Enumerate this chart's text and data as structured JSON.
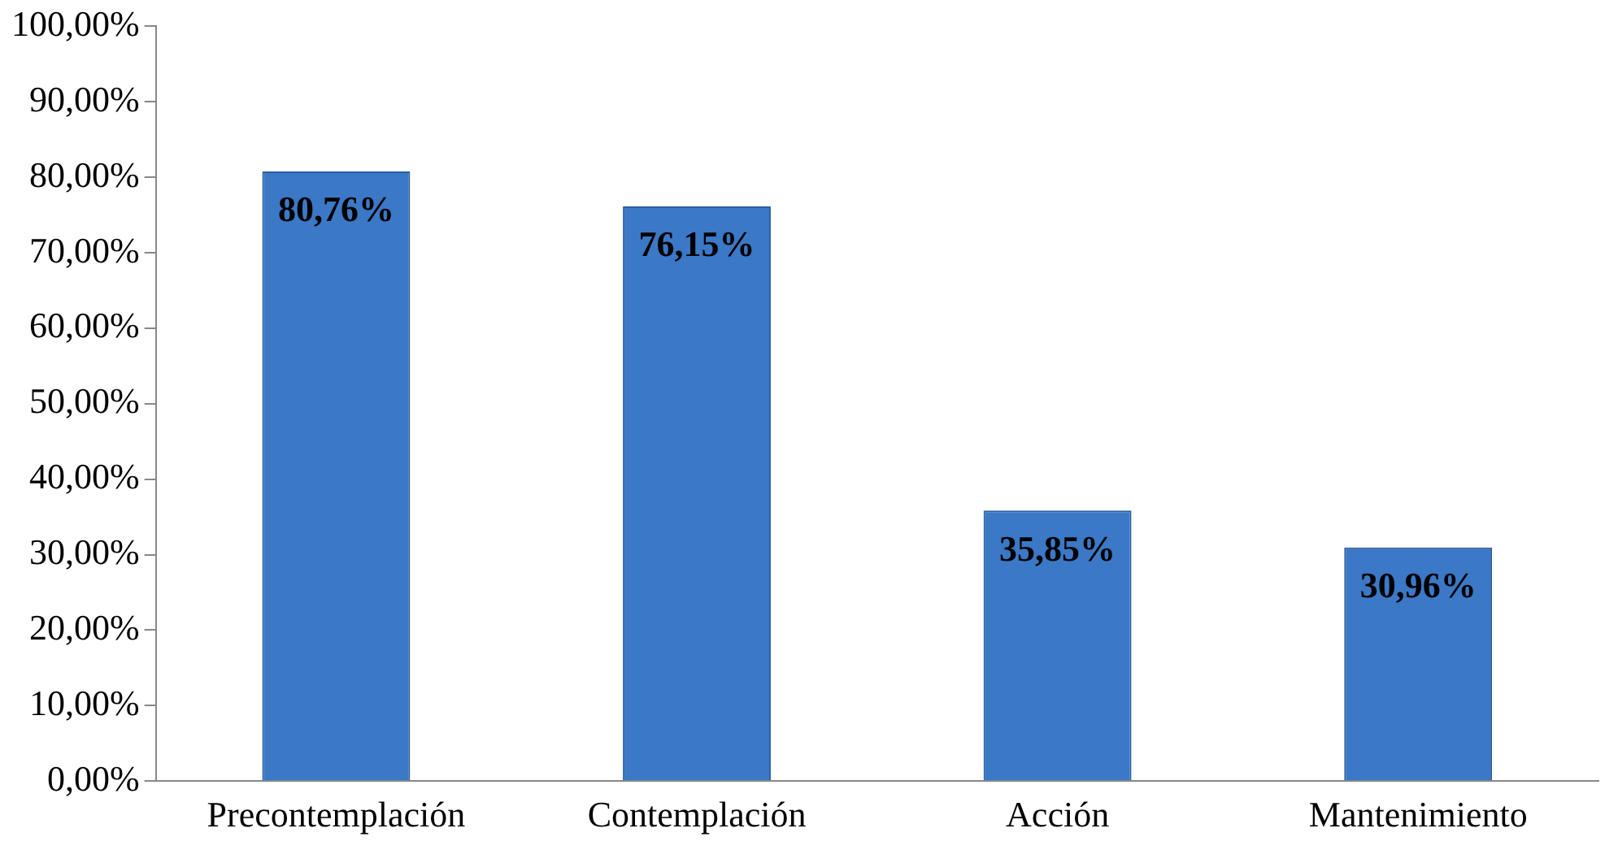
{
  "chart_data": {
    "type": "bar",
    "categories": [
      "Precontemplación",
      "Contemplación",
      "Acción",
      "Mantenimiento"
    ],
    "values": [
      80.76,
      76.15,
      35.85,
      30.96
    ],
    "value_labels": [
      "80,76%",
      "76,15%",
      "35,85%",
      "30,96%"
    ],
    "color": "#3b78c6",
    "ylim": [
      0,
      100
    ],
    "yticks": [
      {
        "value": 0,
        "label": "0,00%"
      },
      {
        "value": 10,
        "label": "10,00%"
      },
      {
        "value": 20,
        "label": "20,00%"
      },
      {
        "value": 30,
        "label": "30,00%"
      },
      {
        "value": 40,
        "label": "40,00%"
      },
      {
        "value": 50,
        "label": "50,00%"
      },
      {
        "value": 60,
        "label": "60,00%"
      },
      {
        "value": 70,
        "label": "70,00%"
      },
      {
        "value": 80,
        "label": "80,00%"
      },
      {
        "value": 90,
        "label": "90,00%"
      },
      {
        "value": 100,
        "label": "100,00%"
      }
    ],
    "grid": false,
    "legend": false
  }
}
